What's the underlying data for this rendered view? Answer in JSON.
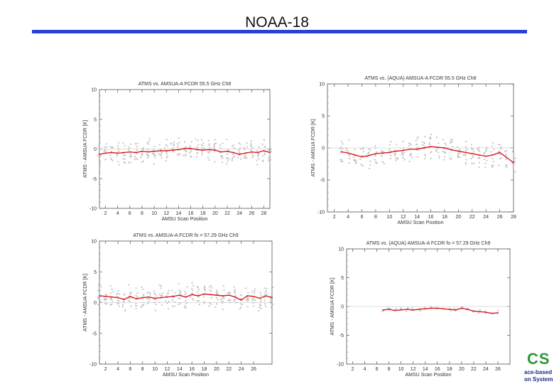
{
  "page": {
    "title": "NOAA-18"
  },
  "logo": {
    "mark": "CS",
    "line1": "ace-based",
    "line2": "on System"
  },
  "chart_data": [
    {
      "type": "line",
      "title": "ATMS  vs. AMSUA-A FCDR 55.5 GHz Ch8",
      "xlabel": "AMSU Scan Position",
      "ylabel": "ATMS - AMSUA FCDR [K]",
      "xlim": [
        1,
        29
      ],
      "ylim": [
        -10,
        10
      ],
      "xticks": [
        2,
        4,
        6,
        8,
        10,
        12,
        14,
        16,
        18,
        20,
        22,
        24,
        26,
        28
      ],
      "xtick_labels": [
        "2",
        "4",
        "6",
        "8",
        "10",
        "12",
        "14",
        "16",
        "18",
        "20",
        "22",
        "24",
        "26",
        "28"
      ],
      "yticks": [
        -10,
        -5,
        0,
        5,
        10
      ],
      "ytick_labels": [
        "-10",
        "-5",
        "0",
        "5",
        "10"
      ],
      "x": [
        1,
        2,
        3,
        4,
        5,
        6,
        7,
        8,
        9,
        10,
        11,
        12,
        13,
        14,
        15,
        16,
        17,
        18,
        19,
        20,
        21,
        22,
        23,
        24,
        25,
        26,
        27,
        28,
        29
      ],
      "values": [
        -0.9,
        -0.7,
        -0.6,
        -0.7,
        -0.6,
        -0.5,
        -0.6,
        -0.4,
        -0.5,
        -0.4,
        -0.3,
        -0.3,
        -0.2,
        -0.1,
        0.1,
        0.1,
        -0.1,
        -0.2,
        -0.1,
        -0.2,
        -0.5,
        -0.4,
        -0.6,
        -0.9,
        -0.7,
        -0.5,
        -0.6,
        -0.3,
        -0.6
      ]
    },
    {
      "type": "line",
      "title": "ATMS  vs. (AQUA) AMSUA-A FCDR 55.5 GHz Ch8",
      "xlabel": "AMSU Scan Position",
      "ylabel": "ATMS - AMSUA FCDR [K]",
      "xlim": [
        1,
        28
      ],
      "ylim": [
        -10,
        10
      ],
      "xticks": [
        2,
        4,
        6,
        8,
        10,
        12,
        14,
        16,
        18,
        20,
        22,
        24,
        26,
        28
      ],
      "xtick_labels": [
        "2",
        "4",
        "6",
        "8",
        "10",
        "12",
        "14",
        "16",
        "18",
        "20",
        "22",
        "24",
        "26",
        "28"
      ],
      "yticks": [
        -10,
        -5,
        0,
        5,
        10
      ],
      "ytick_labels": [
        "-10",
        "-5",
        "0",
        "5",
        "10"
      ],
      "x": [
        3,
        4,
        5,
        6,
        7,
        8,
        9,
        10,
        11,
        12,
        13,
        14,
        15,
        16,
        17,
        18,
        19,
        20,
        21,
        22,
        23,
        24,
        25,
        26,
        27,
        28
      ],
      "values": [
        -0.6,
        -0.8,
        -1.1,
        -1.4,
        -1.2,
        -0.9,
        -0.8,
        -0.7,
        -0.5,
        -0.4,
        -0.2,
        -0.2,
        0.0,
        0.2,
        0.1,
        0.0,
        -0.3,
        -0.5,
        -0.7,
        -0.9,
        -1.1,
        -1.3,
        -1.1,
        -0.7,
        -1.5,
        -2.3
      ]
    },
    {
      "type": "line",
      "title": "ATMS  vs. AMSUA-A FCDR fo = 57.29 GHz Ch9",
      "xlabel": "AMSU Scan Position",
      "ylabel": "ATMS - AMSUA FCDR [K]",
      "xlim": [
        1,
        29
      ],
      "ylim": [
        -10,
        10
      ],
      "xticks": [
        2,
        4,
        6,
        8,
        10,
        12,
        14,
        16,
        18,
        20,
        22,
        24,
        26
      ],
      "xtick_labels": [
        "2",
        "4",
        "6",
        "8",
        "10",
        "12",
        "14",
        "16",
        "18",
        "20",
        "22",
        "24",
        "26"
      ],
      "yticks": [
        -10,
        -5,
        0,
        5,
        10
      ],
      "ytick_labels": [
        "-10",
        "-5",
        "0",
        "5",
        "10"
      ],
      "x": [
        1,
        2,
        3,
        4,
        5,
        6,
        7,
        8,
        9,
        10,
        11,
        12,
        13,
        14,
        15,
        16,
        17,
        18,
        19,
        20,
        21,
        22,
        23,
        24,
        25,
        26,
        27,
        28,
        29
      ],
      "values": [
        1.1,
        1.0,
        0.9,
        0.8,
        0.5,
        1.0,
        0.6,
        0.8,
        0.9,
        0.7,
        0.8,
        0.9,
        1.0,
        1.2,
        0.9,
        1.3,
        1.1,
        1.4,
        1.3,
        1.2,
        1.1,
        1.2,
        0.9,
        0.4,
        1.1,
        1.0,
        0.7,
        1.1,
        0.8
      ]
    },
    {
      "type": "line",
      "title": "ATMS  vs. (AQUA) AMSUA-A FCDR fo = 57.29 GHz Ch9",
      "xlabel": "AMSU Scan Position",
      "ylabel": "ATMS - AMSUA FCDR [K]",
      "xlim": [
        1,
        28
      ],
      "ylim": [
        -10,
        10
      ],
      "xticks": [
        2,
        4,
        6,
        8,
        10,
        12,
        14,
        16,
        18,
        20,
        22,
        24,
        26
      ],
      "xtick_labels": [
        "2",
        "4",
        "6",
        "8",
        "10",
        "12",
        "14",
        "16",
        "18",
        "20",
        "22",
        "24",
        "26"
      ],
      "yticks": [
        -10,
        -5,
        0,
        5,
        10
      ],
      "ytick_labels": [
        "-10",
        "-5",
        "0",
        "5",
        "10"
      ],
      "x": [
        7,
        8,
        9,
        10,
        11,
        12,
        13,
        14,
        15,
        16,
        17,
        18,
        19,
        20,
        21,
        22,
        23,
        24,
        25,
        26
      ],
      "values": [
        -0.6,
        -0.5,
        -0.7,
        -0.6,
        -0.5,
        -0.6,
        -0.5,
        -0.4,
        -0.3,
        -0.3,
        -0.4,
        -0.5,
        -0.6,
        -0.3,
        -0.5,
        -0.8,
        -0.9,
        -1.0,
        -1.2,
        -1.1
      ]
    }
  ]
}
